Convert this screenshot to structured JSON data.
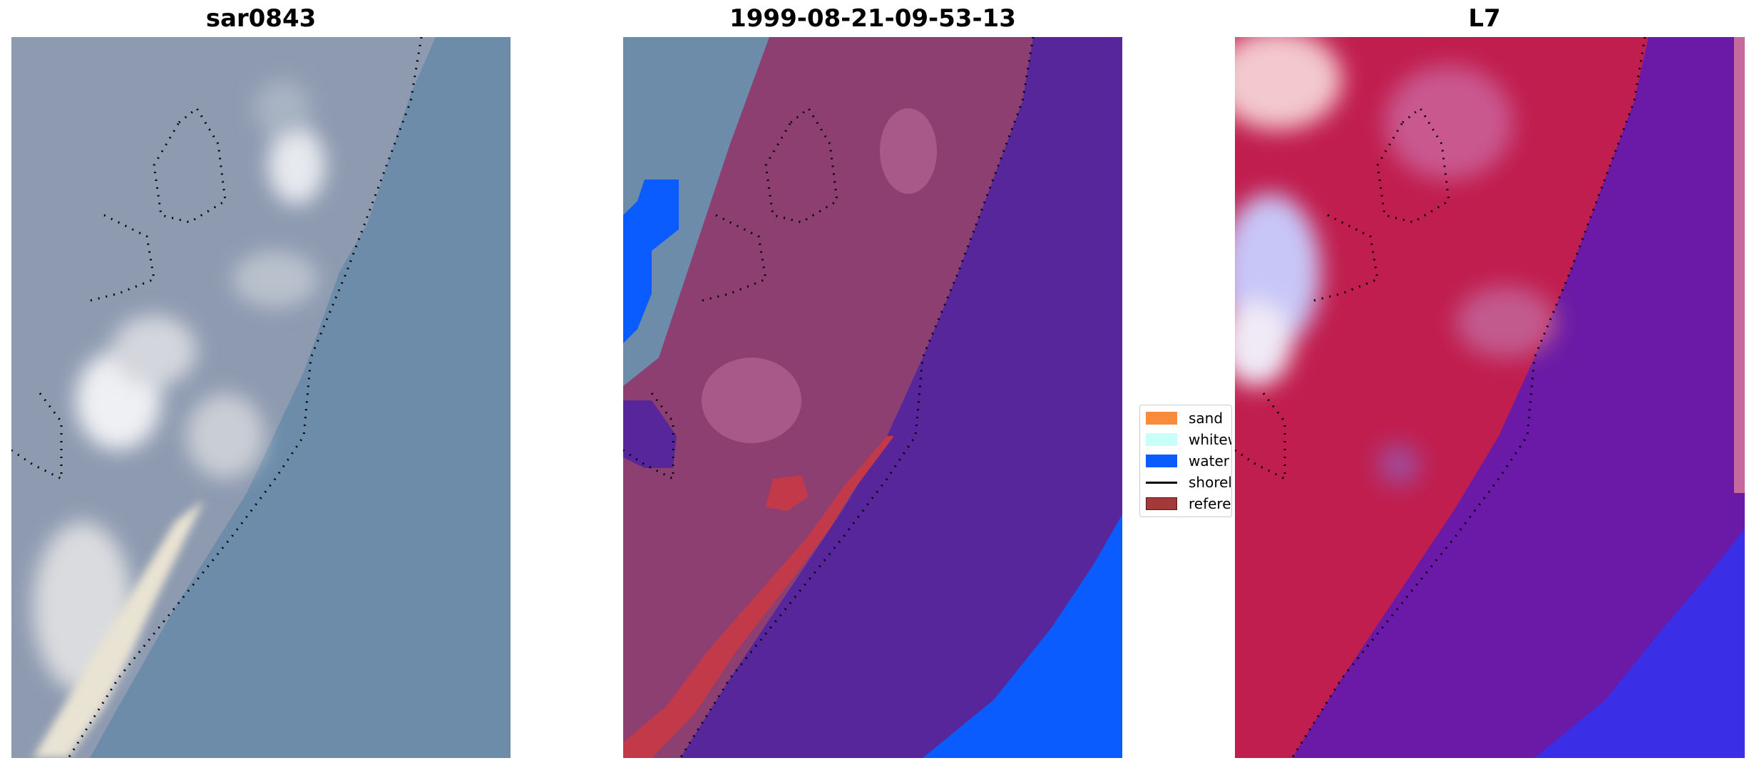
{
  "panels": [
    {
      "title": "sar0843"
    },
    {
      "title": "1999-08-21-09-53-13"
    },
    {
      "title": "L7"
    }
  ],
  "legend": {
    "items": [
      {
        "label": "sand",
        "color": "#f98c3c",
        "kind": "patch",
        "icon": "sand-swatch"
      },
      {
        "label": "whitew",
        "color": "#c8fff8",
        "kind": "patch",
        "icon": "whitewater-swatch"
      },
      {
        "label": "water",
        "color": "#0a5cff",
        "kind": "patch",
        "icon": "water-swatch"
      },
      {
        "label": "shorel",
        "color": "#000000",
        "kind": "line",
        "icon": "shoreline-line"
      },
      {
        "label": "referer",
        "color": "#a33a3a",
        "kind": "patch",
        "icon": "reference-swatch"
      }
    ]
  },
  "colors": {
    "sea": "#6a8aa8",
    "land": "#8c98ae",
    "foam": "#d8dde2",
    "classified_land": "#8e3f72",
    "classified_water": "#57269a",
    "water_class": "#0a5cff",
    "reference_shoreline": "#c23a4a",
    "land_index": "#c01e4e",
    "water_index": "#6a1aa6",
    "shoreline_dots": "#000000"
  }
}
